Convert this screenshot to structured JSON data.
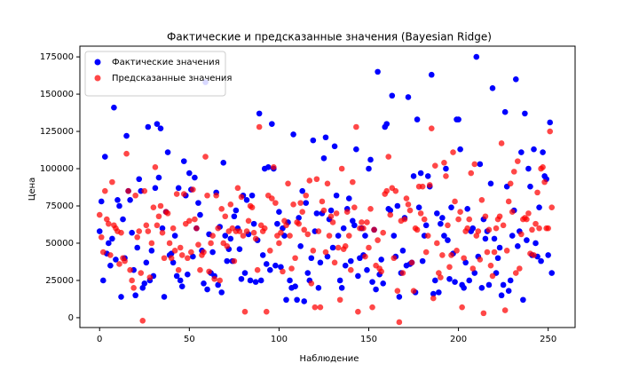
{
  "chart_data": {
    "type": "scatter",
    "title": "Фактические и предсказанные значения (Bayesian Ridge)",
    "x_label": "Наблюдение",
    "y_label": "Цена",
    "legend": "upper left",
    "grid": false,
    "xlim": [
      -11,
      265
    ],
    "xticks": [
      0,
      50,
      100,
      150,
      200,
      250
    ],
    "ylim": [
      -6600,
      182200
    ],
    "yticks": [
      0,
      25000,
      50000,
      75000,
      100000,
      125000,
      150000,
      175000
    ],
    "x": [
      0,
      1,
      2,
      3,
      4,
      5,
      6,
      7,
      8,
      9,
      10,
      11,
      12,
      13,
      14,
      15,
      16,
      17,
      18,
      19,
      20,
      21,
      22,
      23,
      24,
      25,
      26,
      27,
      28,
      29,
      30,
      31,
      32,
      33,
      34,
      35,
      36,
      37,
      38,
      39,
      40,
      41,
      42,
      43,
      44,
      45,
      46,
      47,
      48,
      49,
      50,
      51,
      52,
      53,
      54,
      55,
      56,
      57,
      58,
      59,
      60,
      61,
      62,
      63,
      64,
      65,
      66,
      67,
      68,
      69,
      70,
      71,
      72,
      73,
      74,
      75,
      76,
      77,
      78,
      79,
      80,
      81,
      82,
      83,
      84,
      85,
      86,
      87,
      88,
      89,
      90,
      91,
      92,
      93,
      94,
      95,
      96,
      97,
      98,
      99,
      100,
      101,
      102,
      103,
      104,
      105,
      106,
      107,
      108,
      109,
      110,
      111,
      112,
      113,
      114,
      115,
      116,
      117,
      118,
      119,
      120,
      121,
      122,
      123,
      124,
      125,
      126,
      127,
      128,
      129,
      130,
      131,
      132,
      133,
      134,
      135,
      136,
      137,
      138,
      139,
      140,
      141,
      142,
      143,
      144,
      145,
      146,
      147,
      148,
      149,
      150,
      151,
      152,
      153,
      154,
      155,
      156,
      157,
      158,
      159,
      160,
      161,
      162,
      163,
      164,
      165,
      166,
      167,
      168,
      169,
      170,
      171,
      172,
      173,
      174,
      175,
      176,
      177,
      178,
      179,
      180,
      181,
      182,
      183,
      184,
      185,
      186,
      187,
      188,
      189,
      190,
      191,
      192,
      193,
      194,
      195,
      196,
      197,
      198,
      199,
      200,
      201,
      202,
      203,
      204,
      205,
      206,
      207,
      208,
      209,
      210,
      211,
      212,
      213,
      214,
      215,
      216,
      217,
      218,
      219,
      220,
      221,
      222,
      223,
      224,
      225,
      226,
      227,
      228,
      229,
      230,
      231,
      232,
      233,
      234,
      235,
      236,
      237,
      238,
      239,
      240,
      241,
      242,
      243,
      244,
      245,
      246,
      247,
      248,
      249,
      250,
      251,
      252
    ],
    "series": [
      {
        "name": "Фактические значения",
        "color": "#0000ff",
        "values": [
          58000,
          78000,
          25000,
          108000,
          43000,
          50000,
          35000,
          53000,
          141000,
          39000,
          79000,
          75000,
          14000,
          66000,
          40000,
          122000,
          85000,
          79000,
          57000,
          32000,
          15000,
          47000,
          93000,
          85000,
          20000,
          23000,
          37000,
          128000,
          25000,
          45000,
          28000,
          87000,
          130000,
          94000,
          127000,
          60000,
          14000,
          71000,
          111000,
          42000,
          43000,
          37000,
          55000,
          28000,
          87000,
          25000,
          21000,
          105000,
          82000,
          29000,
          97000,
          86000,
          41000,
          94000,
          60000,
          77000,
          69000,
          45000,
          23000,
          158000,
          19000,
          56000,
          30000,
          44000,
          28000,
          84000,
          22000,
          61000,
          17000,
          104000,
          55000,
          38000,
          46000,
          53000,
          38000,
          68000,
          72000,
          60000,
          46000,
          26000,
          82000,
          30000,
          79000,
          56000,
          25000,
          82000,
          63000,
          24000,
          52000,
          137000,
          25000,
          42000,
          100000,
          36000,
          101000,
          32000,
          130000,
          100000,
          35000,
          63000,
          71000,
          34000,
          60000,
          55000,
          12000,
          64000,
          25000,
          20000,
          123000,
          21000,
          12000,
          67000,
          48000,
          85000,
          11000,
          77000,
          30000,
          25000,
          40000,
          119000,
          58000,
          70000,
          20000,
          37000,
          70000,
          107000,
          121000,
          41000,
          66000,
          72000,
          47000,
          115000,
          82000,
          55000,
          25000,
          20000,
          60000,
          35000,
          73000,
          80000,
          38000,
          65000,
          62000,
          113000,
          28000,
          40000,
          60000,
          42000,
          55000,
          32000,
          100000,
          106000,
          24000,
          59000,
          19000,
          165000,
          29000,
          39000,
          23000,
          128000,
          130000,
          73000,
          72000,
          149000,
          55000,
          41000,
          75000,
          14000,
          30000,
          45000,
          67000,
          35000,
          148000,
          36000,
          37000,
          95000,
          17000,
          133000,
          74000,
          97000,
          38000,
          55000,
          62000,
          95000,
          88000,
          163000,
          16000,
          25000,
          70000,
          17000,
          63000,
          67000,
          55000,
          100000,
          52000,
          26000,
          74000,
          43000,
          24000,
          133000,
          133000,
          113000,
          22000,
          20000,
          37000,
          73000,
          25000,
          58000,
          60000,
          30000,
          175000,
          41000,
          103000,
          20000,
          66000,
          53000,
          58000,
          22000,
          90000,
          154000,
          53000,
          30000,
          40000,
          47000,
          15000,
          22000,
          138000,
          88000,
          18000,
          25000,
          55000,
          72000,
          160000,
          48000,
          58000,
          111000,
          12000,
          137000,
          52000,
          100000,
          88000,
          42000,
          113000,
          50000,
          41000,
          74000,
          38000,
          111000,
          95000,
          93000,
          42000,
          131000,
          30000
        ]
      },
      {
        "name": "Предсказанные значения",
        "color": "#ff0000",
        "values": [
          69000,
          54000,
          44000,
          85000,
          66000,
          63000,
          42000,
          91000,
          62000,
          60000,
          58000,
          36000,
          57000,
          40000,
          38000,
          110000,
          85000,
          32000,
          25000,
          20000,
          82000,
          54000,
          58000,
          30000,
          -2000,
          85000,
          62000,
          58000,
          27000,
          50000,
          74000,
          101000,
          62000,
          68000,
          75000,
          57000,
          40000,
          71000,
          70000,
          50000,
          40000,
          60000,
          45000,
          83000,
          32000,
          47000,
          42000,
          83000,
          63000,
          40000,
          65000,
          44000,
          86000,
          66000,
          60000,
          49000,
          32000,
          42000,
          44000,
          108000,
          82000,
          31000,
          50000,
          55000,
          26000,
          82000,
          60000,
          25000,
          73000,
          50000,
          68000,
          48000,
          58000,
          76000,
          60000,
          38000,
          58000,
          87000,
          58000,
          81000,
          55000,
          4000,
          58000,
          65000,
          75000,
          74000,
          57000,
          53000,
          32000,
          128000,
          62000,
          58000,
          60000,
          4000,
          82000,
          45000,
          80000,
          101000,
          77000,
          55000,
          50000,
          57000,
          31000,
          65000,
          62000,
          90000,
          55000,
          33000,
          76000,
          40000,
          64000,
          63000,
          77000,
          71000,
          59000,
          82000,
          56000,
          92000,
          23000,
          45000,
          7000,
          93000,
          58000,
          7000,
          78000,
          72000,
          44000,
          90000,
          55000,
          68000,
          64000,
          37000,
          70000,
          47000,
          12000,
          100000,
          46000,
          48000,
          71000,
          55000,
          32000,
          91000,
          74000,
          128000,
          4000,
          60000,
          64000,
          60000,
          41000,
          64000,
          47000,
          73000,
          7000,
          59000,
          35000,
          52000,
          33000,
          31000,
          57000,
          83000,
          85000,
          108000,
          69000,
          87000,
          40000,
          85000,
          18000,
          -3000,
          65000,
          30000,
          66000,
          80000,
          76000,
          72000,
          37000,
          18000,
          60000,
          59000,
          88000,
          70000,
          88000,
          66000,
          44000,
          55000,
          89000,
          127000,
          13000,
          102000,
          50000,
          30000,
          27000,
          42000,
          104000,
          95000,
          62000,
          34000,
          42000,
          111000,
          78000,
          45000,
          66000,
          71000,
          7000,
          40000,
          58000,
          60000,
          66000,
          97000,
          33000,
          103000,
          55000,
          58000,
          39000,
          79000,
          3000,
          68000,
          44000,
          59000,
          35000,
          28000,
          44000,
          60000,
          66000,
          68000,
          117000,
          62000,
          5000,
          45000,
          78000,
          90000,
          71000,
          98000,
          30000,
          105000,
          33000,
          56000,
          66000,
          67000,
          66000,
          70000,
          43000,
          59000,
          42000,
          63000,
          84000,
          60000,
          100000,
          101000,
          91000,
          60000,
          60000,
          125000,
          74000
        ]
      }
    ]
  }
}
